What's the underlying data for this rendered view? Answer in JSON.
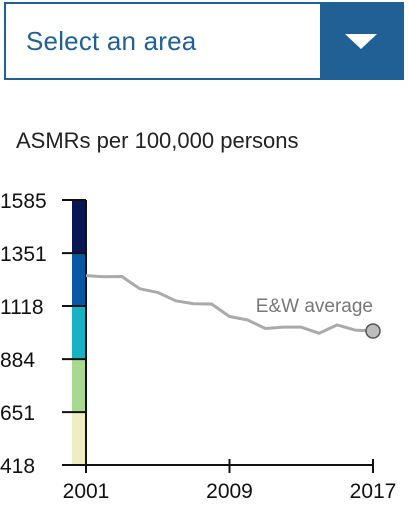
{
  "select": {
    "value": "Select an area",
    "toggle_icon": "chevron-down-icon"
  },
  "chart_data": {
    "type": "line",
    "title": "ASMRs per 100,000 persons",
    "xlabel": "",
    "ylabel": "",
    "ylim": [
      418,
      1585
    ],
    "xlim": [
      2001,
      2017
    ],
    "y_ticks": [
      "1585",
      "1351",
      "1118",
      "884",
      "651",
      "418"
    ],
    "x_ticks": [
      "2001",
      "2009",
      "2017"
    ],
    "legend_bands": [
      {
        "from": 418,
        "to": 651,
        "color": "#f0eec0"
      },
      {
        "from": 651,
        "to": 884,
        "color": "#a8d990"
      },
      {
        "from": 884,
        "to": 1118,
        "color": "#17b3c4"
      },
      {
        "from": 1118,
        "to": 1351,
        "color": "#0a57a5"
      },
      {
        "from": 1351,
        "to": 1585,
        "color": "#0a1654"
      }
    ],
    "series": [
      {
        "name": "E&W average",
        "color": "#aaaaaa",
        "x": [
          2001,
          2002,
          2003,
          2004,
          2005,
          2006,
          2007,
          2008,
          2009,
          2010,
          2011,
          2012,
          2013,
          2014,
          2015,
          2016,
          2017
        ],
        "values": [
          1252,
          1247,
          1248,
          1194,
          1178,
          1141,
          1128,
          1127,
          1072,
          1057,
          1019,
          1025,
          1025,
          998,
          1035,
          1012,
          1008
        ]
      }
    ]
  }
}
